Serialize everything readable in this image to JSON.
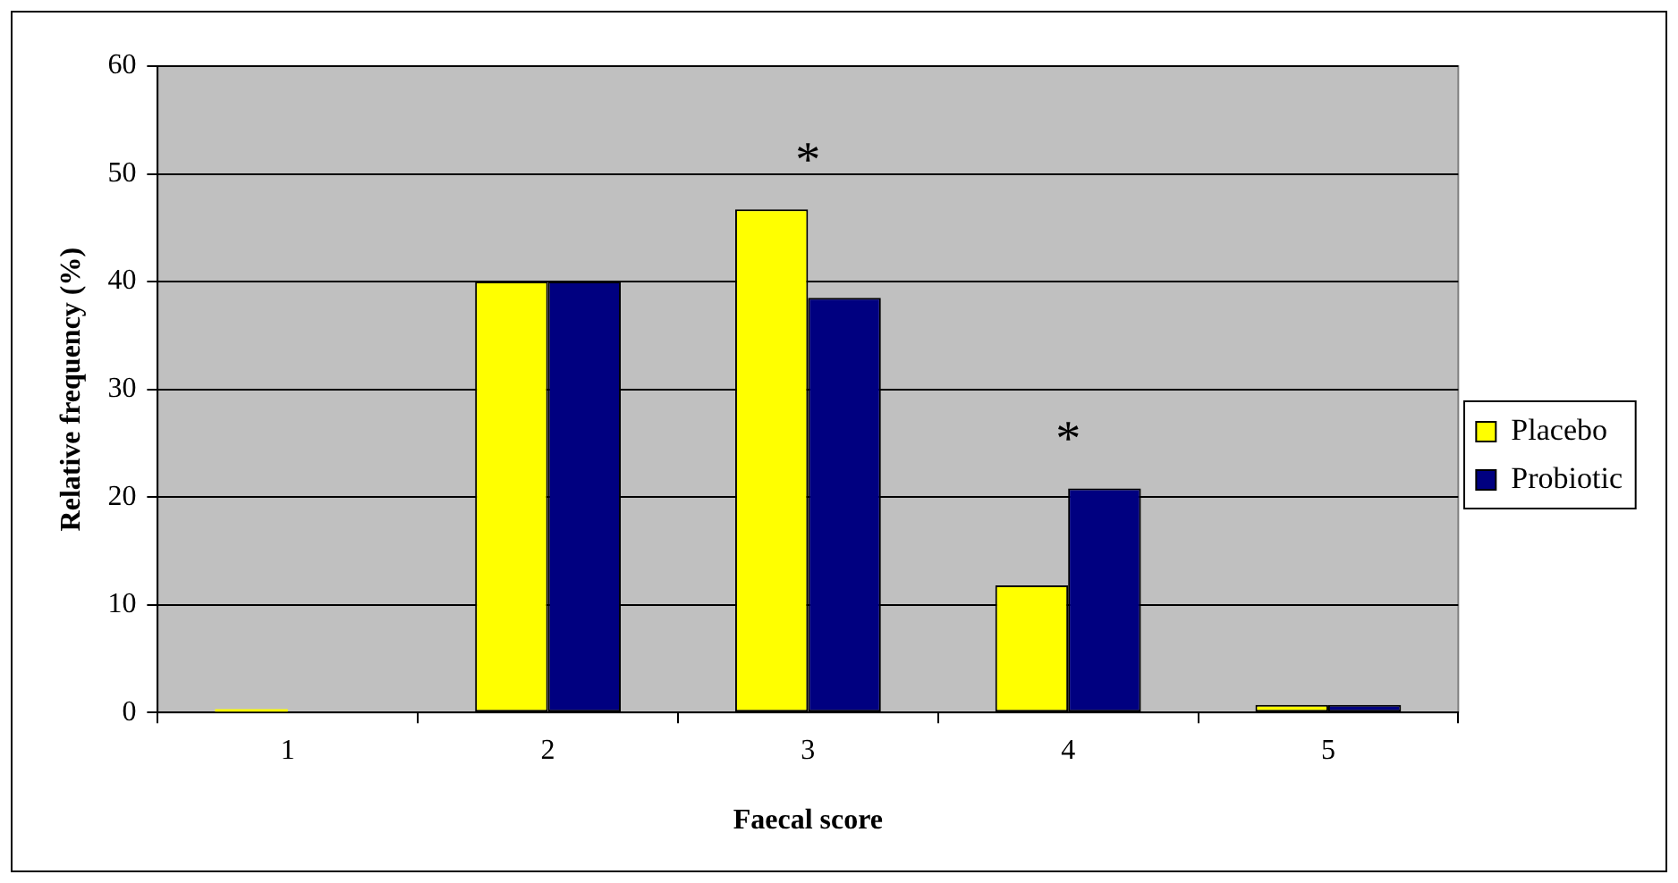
{
  "chart_data": {
    "type": "bar",
    "xlabel": "Faecal score",
    "ylabel": "Relative frequency (%)",
    "categories": [
      "1",
      "2",
      "3",
      "4",
      "5"
    ],
    "series": [
      {
        "name": "Placebo",
        "color": "#ffff00",
        "values": [
          0.3,
          40,
          46.7,
          11.8,
          0.7
        ]
      },
      {
        "name": "Probiotic",
        "color": "#000080",
        "values": [
          0,
          40,
          38.5,
          20.8,
          0.7
        ]
      }
    ],
    "ylim": [
      0,
      60
    ],
    "yticks": [
      0,
      10,
      20,
      30,
      40,
      50,
      60
    ],
    "grid": "y",
    "legend": "right",
    "annotations": [
      {
        "text": "*",
        "x": "3",
        "y": 46.7
      },
      {
        "text": "*",
        "x": "4",
        "y": 20.8
      }
    ]
  }
}
